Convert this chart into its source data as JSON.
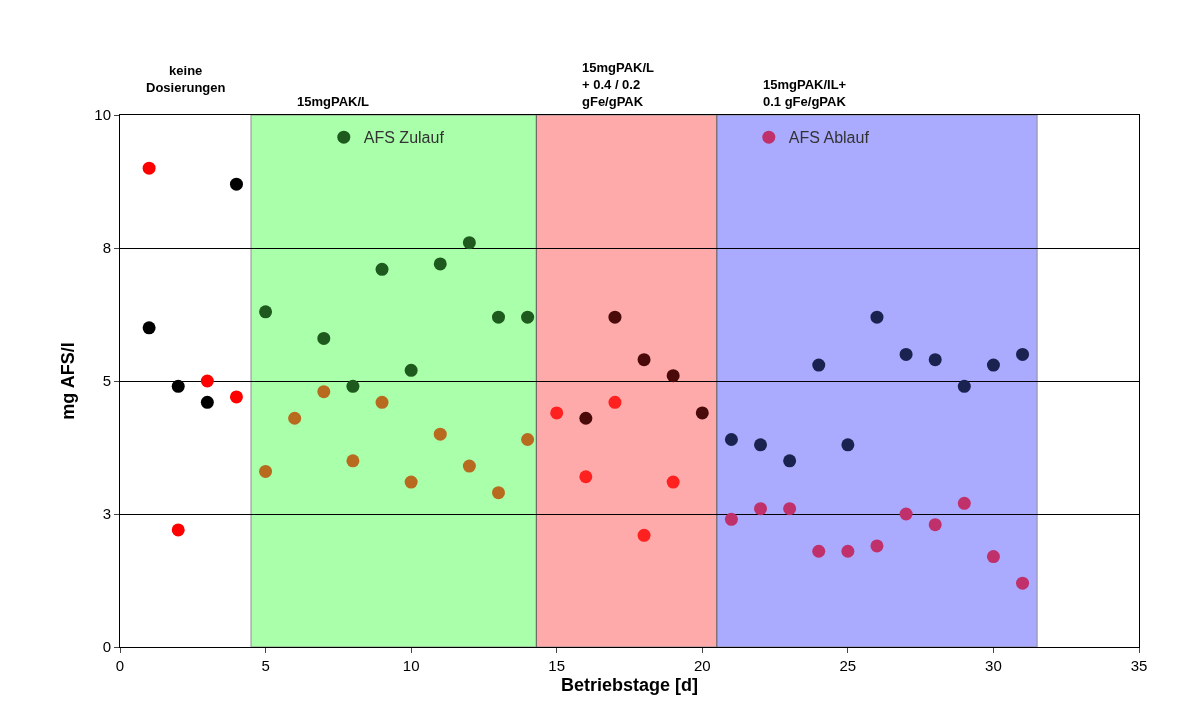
{
  "chart_data": {
    "type": "scatter",
    "xlabel": "Betriebstage [d]",
    "ylabel": "mg AFS/l",
    "xlim": [
      0,
      35
    ],
    "xticks": [
      0,
      5,
      10,
      15,
      20,
      25,
      30,
      35
    ],
    "ylim": [
      0,
      10
    ],
    "yticks": [
      0,
      {
        "value": 2.5,
        "label": "3"
      },
      5,
      {
        "value": 7.5,
        "label": "8"
      },
      10
    ],
    "grid": "y",
    "marker": "circle",
    "legend": "top",
    "annotations": [
      "keine\nDosierungen"
    ],
    "bands": [
      {
        "axis": "x",
        "from": 4.5,
        "to": 14.3,
        "label": "15mgPAK/L",
        "color": "#66ff66"
      },
      {
        "axis": "x",
        "from": 14.3,
        "to": 20.5,
        "label": "15mgPAK/L\n+ 0.4 / 0.2\ngFe/gPAK",
        "color": "#ff6666"
      },
      {
        "axis": "x",
        "from": 20.5,
        "to": 31.5,
        "label": "15mgPAK/IL+\n0.1 gFe/gPAK",
        "color": "#6666ff"
      }
    ],
    "series": [
      {
        "name": "AFS Zulauf",
        "color": "#1e5a1e",
        "x": [
          1,
          2,
          3,
          4,
          5,
          7,
          8,
          9,
          10,
          11,
          12,
          13,
          14,
          16,
          17,
          18,
          19,
          20,
          21,
          22,
          23,
          24,
          25,
          26,
          27,
          28,
          29,
          30,
          31
        ],
        "values": [
          6.0,
          4.9,
          4.6,
          8.7,
          6.3,
          5.8,
          4.9,
          7.1,
          5.2,
          7.2,
          7.6,
          6.2,
          6.2,
          4.3,
          6.2,
          5.4,
          5.1,
          4.4,
          3.9,
          3.8,
          3.5,
          5.3,
          3.8,
          6.2,
          5.5,
          5.4,
          4.9,
          5.3,
          5.5
        ],
        "colors": [
          "#000000",
          "#000000",
          "#000000",
          "#000000",
          "#1e5a1e",
          "#1e5a1e",
          "#1e5a1e",
          "#1e5a1e",
          "#1e5a1e",
          "#1e5a1e",
          "#1e5a1e",
          "#1e5a1e",
          "#1e5a1e",
          "#4a0a0a",
          "#4a0a0a",
          "#4a0a0a",
          "#4a0a0a",
          "#4a0a0a",
          "#1a2350",
          "#1a2350",
          "#1a2350",
          "#1a2350",
          "#1a2350",
          "#1a2350",
          "#1a2350",
          "#1a2350",
          "#1a2350",
          "#1a2350",
          "#1a2350"
        ]
      },
      {
        "name": "AFS Ablauf",
        "color": "#c0306a",
        "x": [
          1,
          2,
          3,
          4,
          5,
          6,
          7,
          8,
          9,
          10,
          11,
          12,
          13,
          14,
          15,
          16,
          17,
          18,
          19,
          21,
          22,
          23,
          24,
          25,
          26,
          27,
          28,
          29,
          30,
          31
        ],
        "values": [
          9.0,
          2.2,
          5.0,
          4.7,
          3.3,
          4.3,
          4.8,
          3.5,
          4.6,
          3.1,
          4.0,
          3.4,
          2.9,
          3.9,
          4.4,
          3.2,
          4.6,
          2.1,
          3.1,
          2.4,
          2.6,
          2.6,
          1.8,
          1.8,
          1.9,
          2.5,
          2.3,
          2.7,
          1.7,
          1.2
        ],
        "colors": [
          "#ff0000",
          "#ff0000",
          "#ff0000",
          "#ff0000",
          "#b86b1e",
          "#b86b1e",
          "#b86b1e",
          "#b86b1e",
          "#b86b1e",
          "#b86b1e",
          "#b86b1e",
          "#b86b1e",
          "#b86b1e",
          "#b86b1e",
          "#ff2020",
          "#ff2020",
          "#ff2020",
          "#ff2020",
          "#ff2020",
          "#c0306a",
          "#c0306a",
          "#c0306a",
          "#c0306a",
          "#c0306a",
          "#c0306a",
          "#c0306a",
          "#c0306a",
          "#c0306a",
          "#c0306a",
          "#c0306a"
        ]
      }
    ]
  }
}
